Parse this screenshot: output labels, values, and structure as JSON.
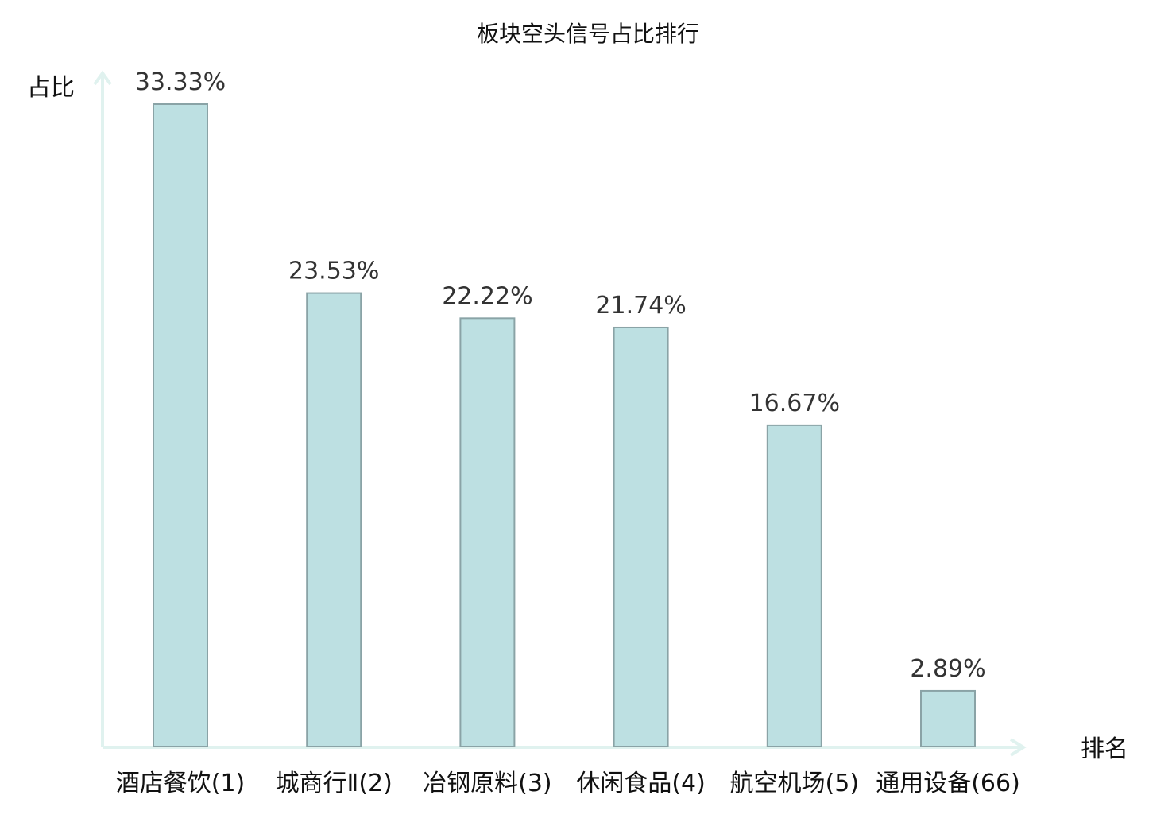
{
  "chart_data": {
    "type": "bar",
    "title": "板块空头信号占比排行",
    "xlabel": "排名",
    "ylabel": "占比",
    "categories": [
      "酒店餐饮(1)",
      "城商行Ⅱ(2)",
      "冶钢原料(3)",
      "休闲食品(4)",
      "航空机场(5)",
      "通用设备(66)"
    ],
    "values": [
      33.33,
      23.53,
      22.22,
      21.74,
      16.67,
      2.89
    ],
    "value_labels": [
      "33.33%",
      "23.53%",
      "22.22%",
      "21.74%",
      "16.67%",
      "2.89%"
    ],
    "highlight_index": 5,
    "ylim": [
      0,
      33.33
    ],
    "grid": false,
    "y_ticks_shown": false
  },
  "colors": {
    "bar_fill": "#bde0e2",
    "bar_stroke": "#8aa3a6",
    "axis": "#e0f2ef",
    "label": "#111111",
    "highlight_label": "#e02020"
  }
}
